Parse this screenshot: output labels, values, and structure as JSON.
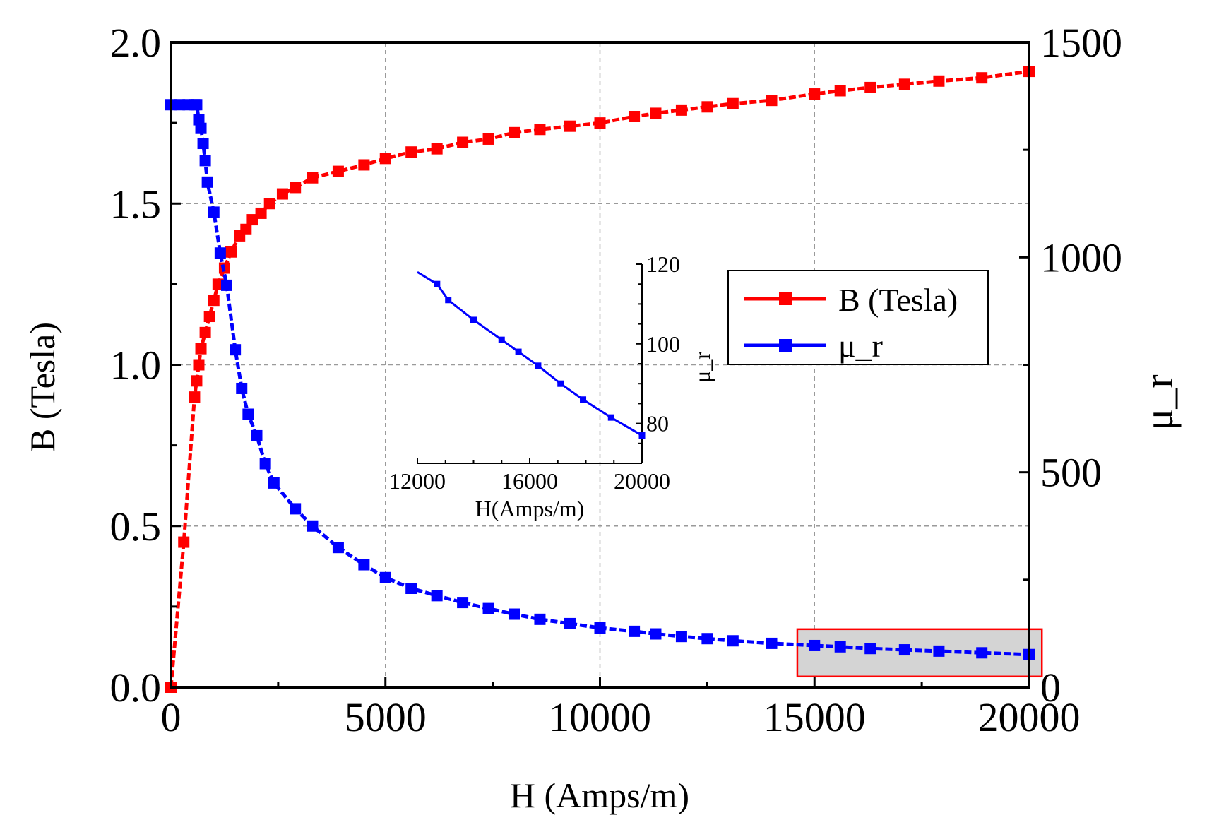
{
  "chart_data": {
    "type": "line",
    "main": {
      "xlabel": "H (Amps/m)",
      "ylabel_left": "B (Tesla)",
      "ylabel_right": "μ_r",
      "xlim": [
        0,
        20000
      ],
      "ylim_left": [
        0,
        2.0
      ],
      "ylim_right": [
        0,
        1500
      ],
      "x_ticks": [
        "0",
        "5000",
        "10000",
        "15000",
        "20000"
      ],
      "y_left_ticks": [
        "0.0",
        "0.5",
        "1.0",
        "1.5",
        "2.0"
      ],
      "y_right_ticks": [
        "0",
        "500",
        "1000",
        "1500"
      ],
      "grid": true,
      "legend_position": "right-middle",
      "series": [
        {
          "name": "B (Tesla)",
          "axis": "left",
          "color": "#ff0000",
          "marker": "square",
          "x": [
            0,
            300,
            550,
            600,
            650,
            700,
            800,
            900,
            1000,
            1100,
            1250,
            1400,
            1600,
            1750,
            1900,
            2100,
            2300,
            2600,
            2900,
            3300,
            3900,
            4500,
            5000,
            5600,
            6200,
            6800,
            7400,
            8000,
            8600,
            9300,
            10000,
            10800,
            11300,
            11900,
            12500,
            13100,
            14000,
            15000,
            15600,
            16300,
            17100,
            17900,
            18900,
            20000
          ],
          "y": [
            0.0,
            0.45,
            0.9,
            0.95,
            1.0,
            1.05,
            1.1,
            1.15,
            1.2,
            1.25,
            1.3,
            1.35,
            1.4,
            1.42,
            1.45,
            1.47,
            1.5,
            1.53,
            1.55,
            1.58,
            1.6,
            1.62,
            1.64,
            1.66,
            1.67,
            1.69,
            1.7,
            1.72,
            1.73,
            1.74,
            1.75,
            1.77,
            1.78,
            1.79,
            1.8,
            1.81,
            1.82,
            1.84,
            1.85,
            1.86,
            1.87,
            1.88,
            1.89,
            1.91
          ]
        },
        {
          "name": "μ_r",
          "axis": "right",
          "color": "#0000ff",
          "marker": "square",
          "x": [
            0,
            200,
            400,
            550,
            600,
            650,
            700,
            750,
            800,
            850,
            1000,
            1150,
            1300,
            1500,
            1650,
            1800,
            2000,
            2200,
            2400,
            2900,
            3300,
            3900,
            4500,
            5000,
            5600,
            6200,
            6800,
            7400,
            8000,
            8600,
            9300,
            10000,
            10800,
            11300,
            11900,
            12500,
            13100,
            14000,
            15000,
            15600,
            16300,
            17100,
            17900,
            18900,
            20000
          ],
          "y": [
            1355,
            1355,
            1355,
            1355,
            1355,
            1320,
            1300,
            1265,
            1225,
            1175,
            1105,
            1010,
            935,
            785,
            695,
            635,
            585,
            520,
            475,
            415,
            375,
            325,
            285,
            255,
            230,
            213,
            197,
            183,
            170,
            158,
            148,
            138,
            130,
            124,
            118,
            113,
            108,
            102,
            97,
            94,
            90,
            87,
            84,
            80,
            76
          ]
        }
      ]
    },
    "inset": {
      "xlabel": "H(Amps/m)",
      "ylabel": "μ_r",
      "xlim": [
        12000,
        20000
      ],
      "ylim": [
        70,
        120
      ],
      "x_ticks": [
        "12000",
        "16000",
        "20000"
      ],
      "y_ticks": [
        "80",
        "100",
        "120"
      ],
      "series": {
        "name": "μ_r",
        "color": "#0000ff",
        "x": [
          12000,
          12700,
          13100,
          14000,
          15000,
          15600,
          16300,
          17100,
          17900,
          18900,
          20000
        ],
        "y": [
          118,
          115,
          111,
          106,
          101,
          98,
          94.5,
          90,
          86,
          81.5,
          77
        ]
      }
    },
    "legend": {
      "entries": [
        "B (Tesla)",
        "μ_r"
      ]
    },
    "highlight_region": {
      "x_range": [
        14600,
        20300
      ],
      "y_right_range": [
        25,
        135
      ],
      "border_color": "#ff0000",
      "fill_color": "#d4d4d4"
    }
  }
}
